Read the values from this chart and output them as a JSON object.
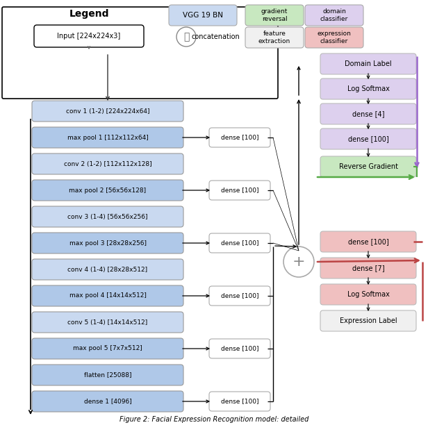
{
  "fig_width": 6.16,
  "fig_height": 6.12,
  "dpi": 100,
  "bg_color": "#ffffff",
  "vgg_color": "#c9d9f0",
  "vgg_dark_color": "#afc8e8",
  "gradient_reversal_color": "#c8e8c0",
  "domain_classifier_color": "#ddd0ee",
  "feature_extraction_color": "#f0f0f0",
  "expression_classifier_color": "#f0c0c0",
  "left_blocks": [
    {
      "label": "conv 1 (1-2) [224x224x64]",
      "pool": false
    },
    {
      "label": "max pool 1 [112x112x64]",
      "pool": true,
      "dense": true
    },
    {
      "label": "conv 2 (1-2) [112x112x128]",
      "pool": false
    },
    {
      "label": "max pool 2 [56x56x128]",
      "pool": true,
      "dense": true
    },
    {
      "label": "conv 3 (1-4) [56x56x256]",
      "pool": false
    },
    {
      "label": "max pool 3 [28x28x256]",
      "pool": true,
      "dense": true
    },
    {
      "label": "conv 4 (1-4) [28x28x512]",
      "pool": false
    },
    {
      "label": "max pool 4 [14x14x512]",
      "pool": true,
      "dense": true
    },
    {
      "label": "conv 5 (1-4) [14x14x512]",
      "pool": false
    },
    {
      "label": "max pool 5 [7x7x512]",
      "pool": true,
      "dense": true
    },
    {
      "label": "flatten [25088]",
      "pool": true,
      "dense": false
    },
    {
      "label": "dense 1 [4096]",
      "pool": true,
      "dense": true
    }
  ],
  "domain_labels": [
    "Domain Label",
    "Log Softmax",
    "dense [4]",
    "dense [100]",
    "Reverse Gradient"
  ],
  "domain_colors": [
    "#ddd0ee",
    "#ddd0ee",
    "#ddd0ee",
    "#ddd0ee",
    "#c8e8c0"
  ],
  "expr_labels": [
    "dense [100]",
    "dense [7]",
    "Log Softmax",
    "Expression Label"
  ],
  "expr_colors": [
    "#f0c0c0",
    "#f0c0c0",
    "#f0c0c0",
    "#f0f0f0"
  ],
  "caption": "Figure 2: Facial Expression Recognition model: detailed"
}
